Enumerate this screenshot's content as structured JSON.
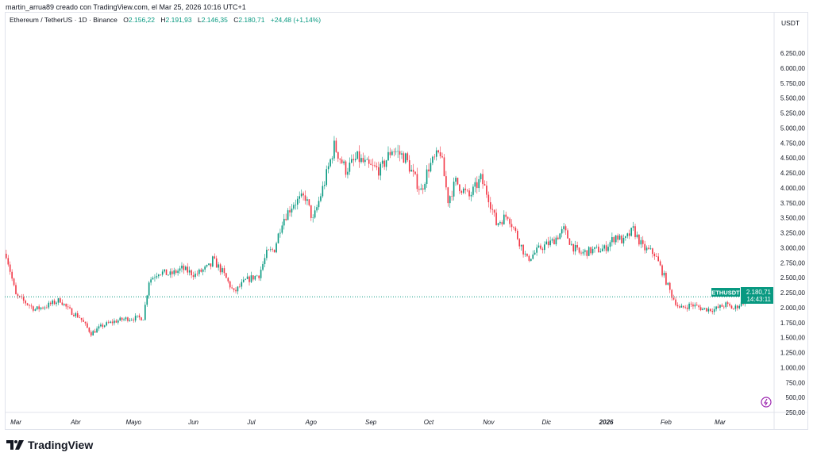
{
  "credit": "martin_arrua89 creado con TradingView.com, el Mar 25, 2026 10:16 UTC+1",
  "legend": {
    "symbol": "Ethereum / TetherUS · 1D · Binance",
    "o_label": "O",
    "o": "2.156,22",
    "h_label": "H",
    "h": "2.191,93",
    "l_label": "L",
    "l": "2.146,35",
    "c_label": "C",
    "c": "2.180,71",
    "change": "+24,48 (+1,14%)"
  },
  "currency": "USDT",
  "price_label": {
    "symbol": "ETHUSDT",
    "price": "2.180,71",
    "countdown": "14:43:11"
  },
  "brand": "TradingView",
  "colors": {
    "up": "#089981",
    "down": "#f23645"
  },
  "chart_data": {
    "type": "candlestick",
    "title": "Ethereum / TetherUS · 1D · Binance",
    "ylim": [
      0,
      6400
    ],
    "y_ticks": [
      "250,00",
      "500,00",
      "750,00",
      "1.000,00",
      "1.250,00",
      "1.500,00",
      "1.750,00",
      "2.000,00",
      "2.250,00",
      "2.500,00",
      "2.750,00",
      "3.000,00",
      "3.250,00",
      "3.500,00",
      "3.750,00",
      "4.000,00",
      "4.250,00",
      "4.500,00",
      "4.750,00",
      "5.000,00",
      "5.250,00",
      "5.500,00",
      "5.750,00",
      "6.000,00",
      "6.250,00"
    ],
    "x_ticks": [
      {
        "label": "Mar",
        "date": "2025-03-01"
      },
      {
        "label": "Abr",
        "date": "2025-04-01"
      },
      {
        "label": "Mayo",
        "date": "2025-05-01"
      },
      {
        "label": "Jun",
        "date": "2025-06-01"
      },
      {
        "label": "Jul",
        "date": "2025-07-01"
      },
      {
        "label": "Ago",
        "date": "2025-08-01"
      },
      {
        "label": "Sep",
        "date": "2025-09-01"
      },
      {
        "label": "Oct",
        "date": "2025-10-01"
      },
      {
        "label": "Nov",
        "date": "2025-11-01"
      },
      {
        "label": "Dic",
        "date": "2025-12-01"
      },
      {
        "label": "2026",
        "date": "2026-01-01"
      },
      {
        "label": "Feb",
        "date": "2026-02-01"
      },
      {
        "label": "Mar",
        "date": "2026-03-01"
      }
    ],
    "last_price": 2180.71,
    "approx_closes": [
      [
        "2025-02-24",
        2900
      ],
      [
        "2025-03-01",
        2200
      ],
      [
        "2025-03-11",
        1970
      ],
      [
        "2025-03-17",
        2030
      ],
      [
        "2025-03-24",
        2130
      ],
      [
        "2025-03-28",
        1970
      ],
      [
        "2025-04-03",
        1840
      ],
      [
        "2025-04-09",
        1570
      ],
      [
        "2025-04-15",
        1700
      ],
      [
        "2025-04-21",
        1770
      ],
      [
        "2025-04-28",
        1820
      ],
      [
        "2025-05-06",
        1830
      ],
      [
        "2025-05-09",
        2450
      ],
      [
        "2025-05-14",
        2600
      ],
      [
        "2025-05-20",
        2550
      ],
      [
        "2025-05-26",
        2650
      ],
      [
        "2025-06-02",
        2550
      ],
      [
        "2025-06-10",
        2700
      ],
      [
        "2025-06-11",
        2800
      ],
      [
        "2025-06-16",
        2600
      ],
      [
        "2025-06-22",
        2250
      ],
      [
        "2025-06-28",
        2450
      ],
      [
        "2025-07-05",
        2550
      ],
      [
        "2025-07-09",
        2900
      ],
      [
        "2025-07-13",
        2980
      ],
      [
        "2025-07-17",
        3450
      ],
      [
        "2025-07-23",
        3750
      ],
      [
        "2025-07-29",
        3850
      ],
      [
        "2025-08-02",
        3450
      ],
      [
        "2025-08-08",
        4100
      ],
      [
        "2025-08-13",
        4700
      ],
      [
        "2025-08-19",
        4300
      ],
      [
        "2025-08-25",
        4500
      ],
      [
        "2025-08-31",
        4350
      ],
      [
        "2025-09-06",
        4300
      ],
      [
        "2025-09-12",
        4650
      ],
      [
        "2025-09-19",
        4500
      ],
      [
        "2025-09-23",
        4200
      ],
      [
        "2025-09-27",
        3950
      ],
      [
        "2025-10-01",
        4350
      ],
      [
        "2025-10-07",
        4600
      ],
      [
        "2025-10-11",
        3800
      ],
      [
        "2025-10-15",
        4100
      ],
      [
        "2025-10-22",
        3850
      ],
      [
        "2025-10-28",
        4150
      ],
      [
        "2025-11-01",
        3850
      ],
      [
        "2025-11-05",
        3400
      ],
      [
        "2025-11-11",
        3550
      ],
      [
        "2025-11-17",
        3100
      ],
      [
        "2025-11-21",
        2800
      ],
      [
        "2025-11-28",
        3000
      ],
      [
        "2025-12-04",
        3100
      ],
      [
        "2025-12-10",
        3300
      ],
      [
        "2025-12-14",
        3050
      ],
      [
        "2025-12-18",
        2900
      ],
      [
        "2025-12-24",
        2950
      ],
      [
        "2025-12-31",
        2980
      ],
      [
        "2026-01-06",
        3200
      ],
      [
        "2026-01-10",
        3100
      ],
      [
        "2026-01-15",
        3300
      ],
      [
        "2026-01-20",
        3000
      ],
      [
        "2026-01-26",
        2900
      ],
      [
        "2026-01-30",
        2600
      ],
      [
        "2026-02-04",
        2200
      ],
      [
        "2026-02-08",
        1980
      ],
      [
        "2026-02-14",
        2050
      ],
      [
        "2026-02-20",
        1980
      ],
      [
        "2026-02-26",
        1970
      ],
      [
        "2026-03-04",
        2050
      ],
      [
        "2026-03-08",
        1980
      ],
      [
        "2026-03-13",
        2100
      ],
      [
        "2026-03-17",
        2300
      ],
      [
        "2026-03-21",
        2150
      ],
      [
        "2026-03-25",
        2180.71
      ]
    ]
  }
}
